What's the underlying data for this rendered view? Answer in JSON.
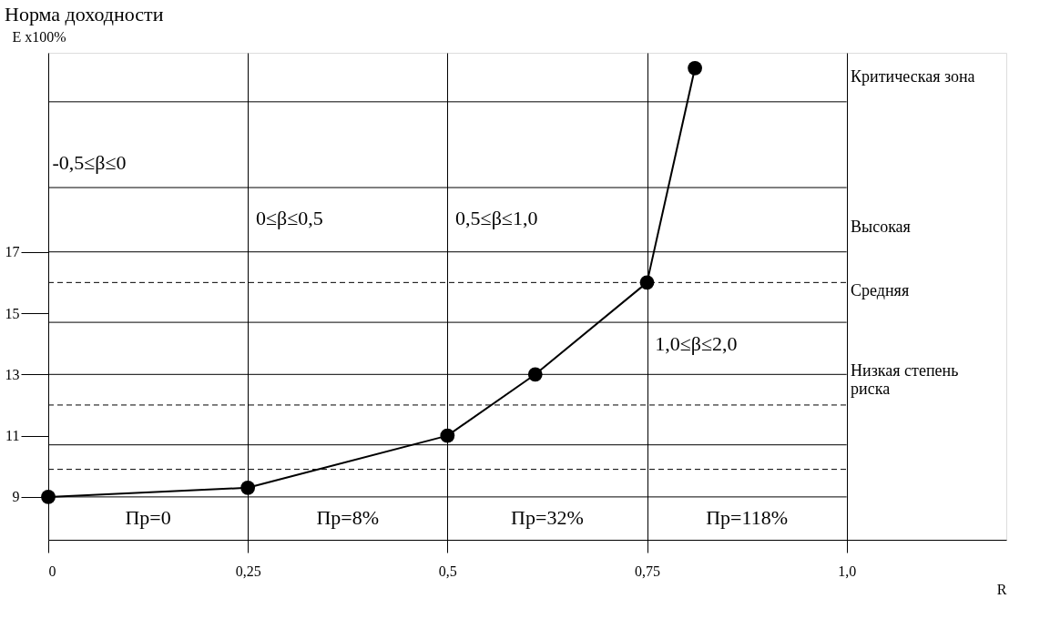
{
  "chart_data": {
    "type": "line",
    "title": "Норма доходности",
    "xlabel": "R",
    "ylabel": "E x100%",
    "x": [
      0,
      0.25,
      0.5,
      0.61,
      0.75,
      0.81
    ],
    "series": [
      {
        "color": "#000000",
        "values": [
          9,
          9.3,
          11,
          13,
          16,
          23
        ]
      }
    ],
    "marker": "circle",
    "line_style": "solid",
    "grid": "x",
    "xlim": [
      0,
      1.2
    ],
    "ylim": [
      7.6,
      23.5
    ],
    "xticks": [
      0,
      {
        "value": 0.25,
        "label": "0,25"
      },
      {
        "value": 0.5,
        "label": "0,5"
      },
      {
        "value": 0.75,
        "label": "0,75"
      },
      {
        "value": 1.0,
        "label": "1,0"
      }
    ],
    "yticks": [
      9,
      11,
      13,
      15,
      17
    ],
    "ref_lines": [
      {
        "axis": "y",
        "value": 21.9,
        "line_style": "solid"
      },
      {
        "axis": "y",
        "value": 19.1,
        "line_style": "solid"
      },
      {
        "axis": "y",
        "value": 17,
        "line_style": "solid"
      },
      {
        "axis": "y",
        "value": 16,
        "line_style": "dashed"
      },
      {
        "axis": "y",
        "value": 14.7,
        "line_style": "solid"
      },
      {
        "axis": "y",
        "value": 13,
        "line_style": "solid"
      },
      {
        "axis": "y",
        "value": 12,
        "line_style": "dashed"
      },
      {
        "axis": "y",
        "value": 10.7,
        "line_style": "solid"
      },
      {
        "axis": "y",
        "value": 9.9,
        "line_style": "dashed"
      },
      {
        "axis": "y",
        "value": 9,
        "line_style": "solid"
      }
    ],
    "annotations": [
      "-0,5≤β≤0",
      "0≤β≤0,5",
      "0,5≤β≤1,0",
      "1,0≤β≤2,0",
      "Пр=0",
      "Пр=8%",
      "Пр=32%",
      "Пр=118%",
      "Критическая зона",
      "Высокая",
      "Средняя",
      "Низкая степень\nриска"
    ]
  }
}
